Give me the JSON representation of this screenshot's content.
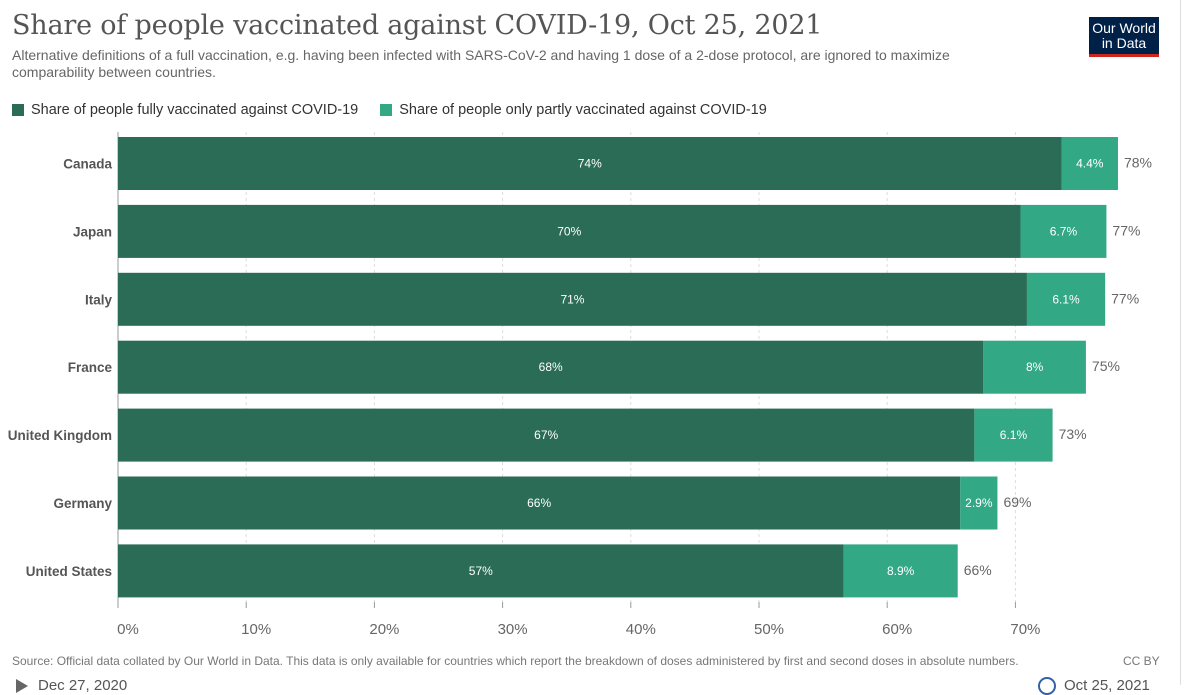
{
  "header": {
    "title": "Share of people vaccinated against COVID-19, Oct 25, 2021",
    "subtitle": "Alternative definitions of a full vaccination, e.g. having been infected with SARS-CoV-2 and having 1 dose of a 2-dose protocol, are ignored to maximize comparability between countries.",
    "logo_line1": "Our World",
    "logo_line2": "in Data"
  },
  "legend": [
    {
      "label": "Share of people fully vaccinated against COVID-19",
      "color": "#2a6c55"
    },
    {
      "label": "Share of people only partly vaccinated against COVID-19",
      "color": "#32a885"
    }
  ],
  "chart_data": {
    "type": "bar",
    "orientation": "horizontal",
    "stacked": true,
    "categories": [
      "Canada",
      "Japan",
      "Italy",
      "France",
      "United Kingdom",
      "Germany",
      "United States"
    ],
    "series": [
      {
        "name": "Share of people fully vaccinated against COVID-19",
        "color": "#2a6c55",
        "values": [
          73.6,
          70.4,
          70.9,
          67.5,
          66.8,
          65.7,
          56.6
        ],
        "labels": [
          "74%",
          "70%",
          "71%",
          "68%",
          "67%",
          "66%",
          "57%"
        ]
      },
      {
        "name": "Share of people only partly vaccinated against COVID-19",
        "color": "#32a885",
        "values": [
          4.4,
          6.7,
          6.1,
          8.0,
          6.1,
          2.9,
          8.9
        ],
        "labels": [
          "4.4%",
          "6.7%",
          "6.1%",
          "8%",
          "6.1%",
          "2.9%",
          "8.9%"
        ]
      }
    ],
    "totals": [
      "78%",
      "77%",
      "77%",
      "75%",
      "73%",
      "69%",
      "66%"
    ],
    "x_ticks": [
      0,
      10,
      20,
      30,
      40,
      50,
      60,
      70
    ],
    "x_tick_labels": [
      "0%",
      "10%",
      "20%",
      "30%",
      "40%",
      "50%",
      "60%",
      "70%"
    ],
    "xlim": [
      0,
      78
    ],
    "grid": "vertical-dashed",
    "legend_position": "top-left"
  },
  "footer": {
    "source": "Source: Official data collated by Our World in Data. This data is only available for countries which report the breakdown of doses administered by first and second doses in absolute numbers.",
    "license": "CC BY"
  },
  "timeline": {
    "start_date": "Dec 27, 2020",
    "end_date": "Oct 25, 2021",
    "play_icon": "play-icon"
  }
}
